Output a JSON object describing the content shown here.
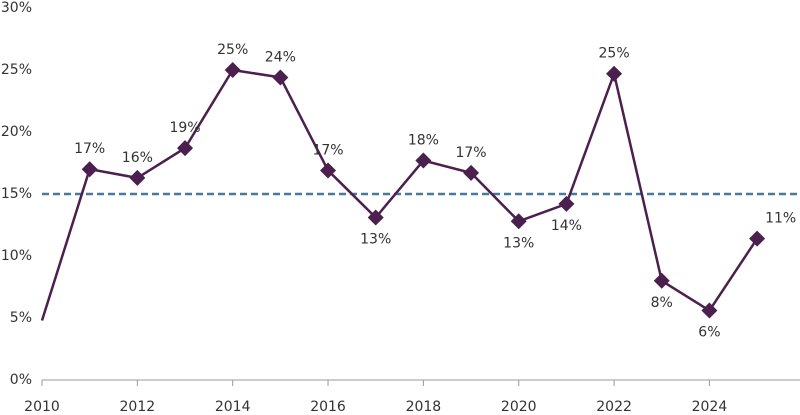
{
  "chart_data": {
    "type": "line",
    "x": [
      2010,
      2011,
      2012,
      2013,
      2014,
      2015,
      2016,
      2017,
      2018,
      2019,
      2020,
      2021,
      2022,
      2023,
      2024,
      2025
    ],
    "values": [
      4.8,
      17.0,
      16.3,
      18.7,
      25.0,
      24.4,
      16.9,
      13.1,
      17.7,
      16.7,
      12.8,
      14.2,
      24.7,
      8.0,
      5.6,
      11.4
    ],
    "value_labels": [
      null,
      "17%",
      "16%",
      "19%",
      "25%",
      "24%",
      "17%",
      "13%",
      "18%",
      "17%",
      "13%",
      "14%",
      "25%",
      "8%",
      "6%",
      "11%"
    ],
    "color": "#4b1f4e",
    "xlim": [
      2010,
      2025.9
    ],
    "xticks": [
      2010,
      2012,
      2014,
      2016,
      2018,
      2020,
      2022,
      2024
    ],
    "ylim": [
      0,
      30
    ],
    "yticks": [
      {
        "value": 0,
        "label": "0%"
      },
      {
        "value": 5,
        "label": "5%"
      },
      {
        "value": 10,
        "label": "10%"
      },
      {
        "value": 15,
        "label": "15%"
      },
      {
        "value": 20,
        "label": "20%"
      },
      {
        "value": 25,
        "label": "25%"
      },
      {
        "value": 30,
        "label": "30%"
      }
    ],
    "reference_line": {
      "value": 15,
      "color": "#4a7a9b",
      "dashed": true
    },
    "grid": false
  }
}
